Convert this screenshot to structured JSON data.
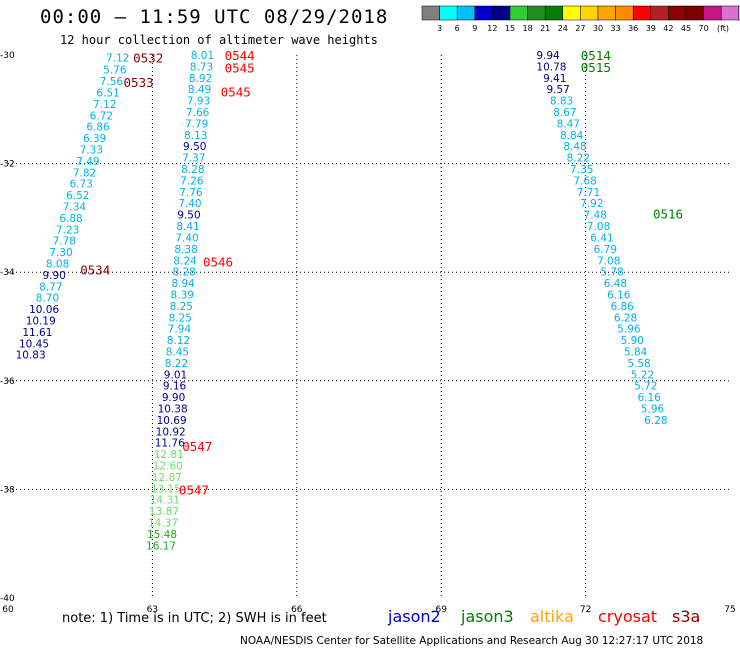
{
  "header": {
    "title": "00:00 – 11:59 UTC 08/29/2018",
    "subtitle": "12 hour collection of altimeter wave heights"
  },
  "colorbar": {
    "colors": [
      "#808080",
      "#00ffff",
      "#00bfff",
      "#0000cd",
      "#00008b",
      "#32cd32",
      "#228b22",
      "#008000",
      "#ffff00",
      "#ffd700",
      "#ffa500",
      "#ff8c00",
      "#ff0000",
      "#b22222",
      "#8b0000",
      "#800000",
      "#c71585",
      "#da70d6",
      "#ffc0cb",
      "#000000"
    ],
    "labels": [
      "3",
      "6",
      "9",
      "12",
      "15",
      "18",
      "21",
      "24",
      "27",
      "30",
      "33",
      "36",
      "39",
      "42",
      "45",
      "70"
    ],
    "unit": "(ft)"
  },
  "note": "note: 1) Time is in UTC; 2) SWH is in feet",
  "satellites": [
    {
      "name": "jason2",
      "color": "#0000cd"
    },
    {
      "name": "jason3",
      "color": "#008000"
    },
    {
      "name": "altika",
      "color": "#ffa500"
    },
    {
      "name": "cryosat",
      "color": "#ff0000"
    },
    {
      "name": "s3a",
      "color": "#8b0000"
    }
  ],
  "credit": "NOAA/NESDIS Center for Satellite Applications and Research   Aug 30 12:27:17 UTC 2018",
  "chart_data": {
    "type": "scatter",
    "x_range": [
      60,
      75
    ],
    "y_range": [
      -40,
      -30
    ],
    "x_ticks": [
      "60",
      "63",
      "66",
      "69",
      "72",
      "75"
    ],
    "y_ticks": [
      "-30",
      "-32",
      "-34",
      "-36",
      "-38",
      "-40"
    ],
    "grid": true,
    "series": [
      {
        "name": "s3a",
        "color": "#8b0000",
        "time_labels": [
          {
            "text": "0532",
            "x": 62.6,
            "y": -30.05
          },
          {
            "text": "0533",
            "x": 62.4,
            "y": -30.5
          },
          {
            "text": "0534",
            "x": 61.5,
            "y": -33.95
          }
        ],
        "points": [
          {
            "x": 62.28,
            "y": -30.05,
            "v": "7.12"
          },
          {
            "x": 62.22,
            "y": -30.27,
            "v": "5.76"
          },
          {
            "x": 62.15,
            "y": -30.48,
            "v": "7.56"
          },
          {
            "x": 62.08,
            "y": -30.69,
            "v": "6.51"
          },
          {
            "x": 62.01,
            "y": -30.9,
            "v": "7.12"
          },
          {
            "x": 61.94,
            "y": -31.11,
            "v": "6.72"
          },
          {
            "x": 61.87,
            "y": -31.32,
            "v": "6.86"
          },
          {
            "x": 61.8,
            "y": -31.53,
            "v": "6.39"
          },
          {
            "x": 61.73,
            "y": -31.74,
            "v": "7.33"
          },
          {
            "x": 61.66,
            "y": -31.95,
            "v": "7.49"
          },
          {
            "x": 61.59,
            "y": -32.16,
            "v": "7.82"
          },
          {
            "x": 61.52,
            "y": -32.37,
            "v": "6.73"
          },
          {
            "x": 61.45,
            "y": -32.58,
            "v": "6.52"
          },
          {
            "x": 61.38,
            "y": -32.79,
            "v": "7.34"
          },
          {
            "x": 61.31,
            "y": -33.0,
            "v": "6.88"
          },
          {
            "x": 61.24,
            "y": -33.21,
            "v": "7.23"
          },
          {
            "x": 61.17,
            "y": -33.42,
            "v": "7.78"
          },
          {
            "x": 61.1,
            "y": -33.63,
            "v": "7.30"
          },
          {
            "x": 61.03,
            "y": -33.84,
            "v": "8.08"
          },
          {
            "x": 60.96,
            "y": -34.05,
            "v": "9.90"
          },
          {
            "x": 60.89,
            "y": -34.26,
            "v": "8.77"
          },
          {
            "x": 60.82,
            "y": -34.47,
            "v": "8.70"
          },
          {
            "x": 60.75,
            "y": -34.68,
            "v": "10.06"
          },
          {
            "x": 60.68,
            "y": -34.89,
            "v": "10.19"
          },
          {
            "x": 60.61,
            "y": -35.1,
            "v": "11.61"
          },
          {
            "x": 60.54,
            "y": -35.31,
            "v": "10.45"
          },
          {
            "x": 60.47,
            "y": -35.52,
            "v": "10.83"
          }
        ]
      },
      {
        "name": "cryosat",
        "color": "#ff0000",
        "time_labels": [
          {
            "text": "0544",
            "x": 64.5,
            "y": -30.0
          },
          {
            "text": "0545",
            "x": 64.5,
            "y": -30.23
          },
          {
            "text": "0545",
            "x": 64.42,
            "y": -30.67
          },
          {
            "text": "0546",
            "x": 64.05,
            "y": -33.8
          },
          {
            "text": "0547",
            "x": 63.62,
            "y": -37.2
          },
          {
            "text": "0547",
            "x": 63.55,
            "y": -38.0
          }
        ],
        "points": [
          {
            "x": 64.04,
            "y": -30.0,
            "v": "8.01"
          },
          {
            "x": 64.02,
            "y": -30.21,
            "v": "8.73"
          },
          {
            "x": 64.0,
            "y": -30.42,
            "v": "8.92"
          },
          {
            "x": 63.98,
            "y": -30.63,
            "v": "8.49"
          },
          {
            "x": 63.96,
            "y": -30.84,
            "v": "7.93"
          },
          {
            "x": 63.94,
            "y": -31.05,
            "v": "7.66"
          },
          {
            "x": 63.92,
            "y": -31.26,
            "v": "7.79"
          },
          {
            "x": 63.9,
            "y": -31.47,
            "v": "8.13"
          },
          {
            "x": 63.88,
            "y": -31.68,
            "v": "9.50"
          },
          {
            "x": 63.86,
            "y": -31.89,
            "v": "7.37"
          },
          {
            "x": 63.84,
            "y": -32.1,
            "v": "8.28"
          },
          {
            "x": 63.82,
            "y": -32.31,
            "v": "7.26"
          },
          {
            "x": 63.8,
            "y": -32.52,
            "v": "7.76"
          },
          {
            "x": 63.78,
            "y": -32.73,
            "v": "7.40"
          },
          {
            "x": 63.76,
            "y": -32.94,
            "v": "9.50"
          },
          {
            "x": 63.74,
            "y": -33.15,
            "v": "8.41"
          },
          {
            "x": 63.72,
            "y": -33.36,
            "v": "7.40"
          },
          {
            "x": 63.7,
            "y": -33.57,
            "v": "8.38"
          },
          {
            "x": 63.68,
            "y": -33.78,
            "v": "8.24"
          },
          {
            "x": 63.66,
            "y": -33.99,
            "v": "8.28"
          },
          {
            "x": 63.64,
            "y": -34.2,
            "v": "8.94"
          },
          {
            "x": 63.62,
            "y": -34.41,
            "v": "8.39"
          },
          {
            "x": 63.6,
            "y": -34.62,
            "v": "8.25"
          },
          {
            "x": 63.58,
            "y": -34.83,
            "v": "8.25"
          },
          {
            "x": 63.56,
            "y": -35.04,
            "v": "7.94"
          },
          {
            "x": 63.54,
            "y": -35.25,
            "v": "8.12"
          },
          {
            "x": 63.52,
            "y": -35.46,
            "v": "8.45"
          },
          {
            "x": 63.5,
            "y": -35.67,
            "v": "8.22"
          },
          {
            "x": 63.48,
            "y": -35.88,
            "v": "9.01"
          },
          {
            "x": 63.46,
            "y": -36.09,
            "v": "9.16"
          },
          {
            "x": 63.44,
            "y": -36.3,
            "v": "9.90"
          },
          {
            "x": 63.42,
            "y": -36.51,
            "v": "10.38"
          },
          {
            "x": 63.4,
            "y": -36.72,
            "v": "10.69"
          },
          {
            "x": 63.38,
            "y": -36.93,
            "v": "10.92"
          },
          {
            "x": 63.36,
            "y": -37.14,
            "v": "11.76"
          },
          {
            "x": 63.34,
            "y": -37.35,
            "v": "12.81"
          },
          {
            "x": 63.32,
            "y": -37.56,
            "v": "12.60"
          },
          {
            "x": 63.3,
            "y": -37.77,
            "v": "12.87"
          },
          {
            "x": 63.28,
            "y": -37.98,
            "v": "13.15"
          },
          {
            "x": 63.26,
            "y": -38.19,
            "v": "14.31"
          },
          {
            "x": 63.24,
            "y": -38.4,
            "v": "13.87"
          },
          {
            "x": 63.22,
            "y": -38.61,
            "v": "14.37"
          },
          {
            "x": 63.2,
            "y": -38.82,
            "v": "15.48"
          },
          {
            "x": 63.18,
            "y": -39.03,
            "v": "16.17"
          }
        ]
      },
      {
        "name": "jason3",
        "color": "#008000",
        "time_labels": [
          {
            "text": "0514",
            "x": 71.9,
            "y": -30.0
          },
          {
            "text": "0515",
            "x": 71.9,
            "y": -30.22
          },
          {
            "text": "0516",
            "x": 73.4,
            "y": -32.92
          }
        ],
        "points": [
          {
            "x": 71.22,
            "y": -30.0,
            "v": "9.94"
          },
          {
            "x": 71.29,
            "y": -30.21,
            "v": "10.78"
          },
          {
            "x": 71.36,
            "y": -30.42,
            "v": "9.41"
          },
          {
            "x": 71.43,
            "y": -30.63,
            "v": "9.57"
          },
          {
            "x": 71.5,
            "y": -30.84,
            "v": "8.83"
          },
          {
            "x": 71.57,
            "y": -31.05,
            "v": "8.67"
          },
          {
            "x": 71.64,
            "y": -31.26,
            "v": "8.47"
          },
          {
            "x": 71.71,
            "y": -31.47,
            "v": "8.84"
          },
          {
            "x": 71.78,
            "y": -31.68,
            "v": "8.48"
          },
          {
            "x": 71.85,
            "y": -31.89,
            "v": "8.22"
          },
          {
            "x": 71.92,
            "y": -32.1,
            "v": "7.35"
          },
          {
            "x": 71.99,
            "y": -32.31,
            "v": "7.68"
          },
          {
            "x": 72.06,
            "y": -32.52,
            "v": "7.71"
          },
          {
            "x": 72.13,
            "y": -32.73,
            "v": "7.92"
          },
          {
            "x": 72.2,
            "y": -32.94,
            "v": "7.48"
          },
          {
            "x": 72.27,
            "y": -33.15,
            "v": "7.08"
          },
          {
            "x": 72.34,
            "y": -33.36,
            "v": "6.41"
          },
          {
            "x": 72.41,
            "y": -33.57,
            "v": "6.79"
          },
          {
            "x": 72.48,
            "y": -33.78,
            "v": "7.08"
          },
          {
            "x": 72.55,
            "y": -33.99,
            "v": "5.78"
          },
          {
            "x": 72.62,
            "y": -34.2,
            "v": "6.48"
          },
          {
            "x": 72.69,
            "y": -34.41,
            "v": "6.16"
          },
          {
            "x": 72.76,
            "y": -34.62,
            "v": "6.86"
          },
          {
            "x": 72.83,
            "y": -34.83,
            "v": "6.28"
          },
          {
            "x": 72.9,
            "y": -35.04,
            "v": "5.96"
          },
          {
            "x": 72.97,
            "y": -35.25,
            "v": "5.90"
          },
          {
            "x": 73.04,
            "y": -35.46,
            "v": "5.84"
          },
          {
            "x": 73.11,
            "y": -35.67,
            "v": "5.58"
          },
          {
            "x": 73.18,
            "y": -35.88,
            "v": "5.22"
          },
          {
            "x": 73.25,
            "y": -36.09,
            "v": "5.72"
          },
          {
            "x": 73.32,
            "y": -36.3,
            "v": "6.16"
          },
          {
            "x": 73.39,
            "y": -36.51,
            "v": "5.96"
          },
          {
            "x": 73.46,
            "y": -36.72,
            "v": "6.28"
          }
        ]
      }
    ]
  }
}
